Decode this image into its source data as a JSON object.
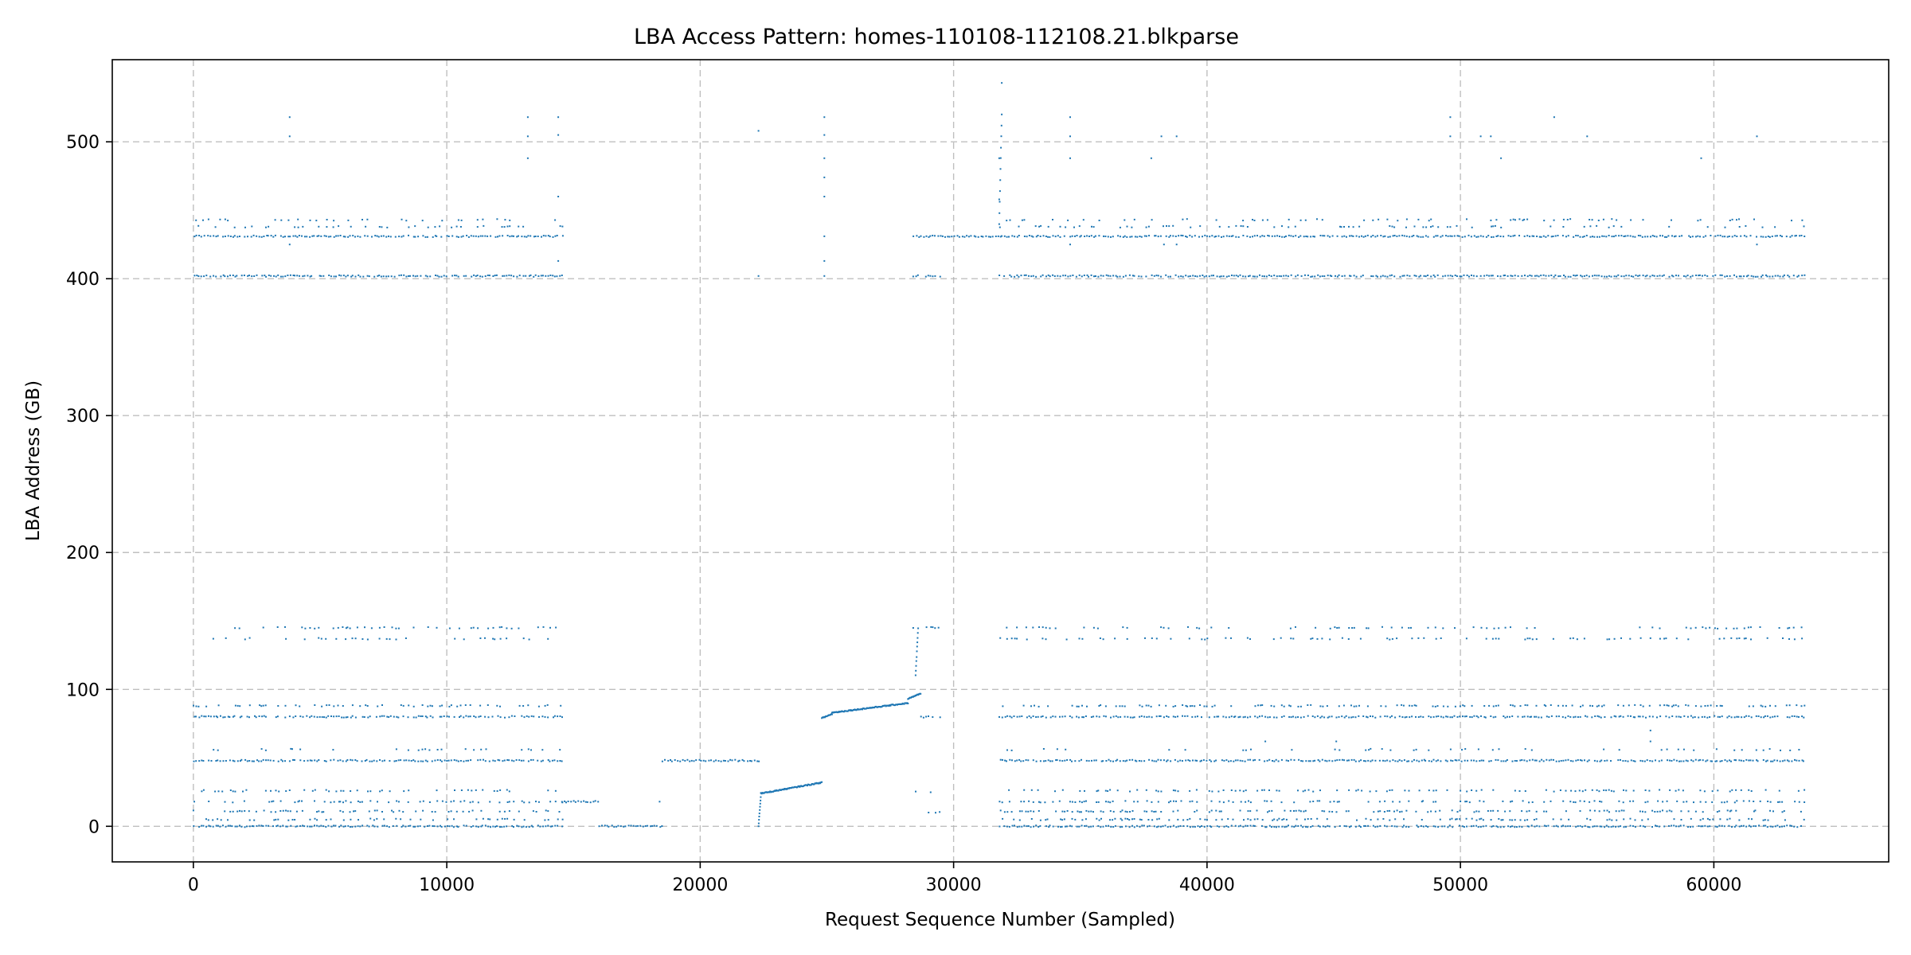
{
  "chart_data": {
    "type": "scatter",
    "title": "LBA Access Pattern: homes-110108-112108.21.blkparse",
    "xlabel": "Request Sequence Number (Sampled)",
    "ylabel": "LBA Address (GB)",
    "xlim": [
      -3200,
      66900
    ],
    "ylim": [
      -26,
      560
    ],
    "x_ticks": [
      0,
      10000,
      20000,
      30000,
      40000,
      50000,
      60000
    ],
    "y_ticks": [
      0,
      100,
      200,
      300,
      400,
      500
    ],
    "grid": true,
    "point_color": "#1f77b4",
    "series": [
      {
        "bands": [
          {
            "x": [
              0,
              14600
            ],
            "y": 0,
            "density": 0.9
          },
          {
            "x": [
              0,
              14600
            ],
            "y": 5,
            "density": 0.35
          },
          {
            "x": [
              0,
              14600
            ],
            "y": 11,
            "density": 0.35
          },
          {
            "x": [
              0,
              14600
            ],
            "y": 18,
            "density": 0.4
          },
          {
            "x": [
              0,
              14600
            ],
            "y": 26,
            "density": 0.35
          },
          {
            "x": [
              0,
              14600
            ],
            "y": 48,
            "density": 0.9
          },
          {
            "x": [
              0,
              14600
            ],
            "y": 56,
            "density": 0.12
          },
          {
            "x": [
              0,
              14600
            ],
            "y": 80,
            "density": 0.8
          },
          {
            "x": [
              0,
              14600
            ],
            "y": 88,
            "density": 0.4
          },
          {
            "x": [
              0,
              14600
            ],
            "y": 137,
            "density": 0.2
          },
          {
            "x": [
              0,
              14600
            ],
            "y": 145,
            "density": 0.25
          },
          {
            "x": [
              0,
              14600
            ],
            "y": 402,
            "density": 0.9
          },
          {
            "x": [
              0,
              14600
            ],
            "y": 431,
            "density": 0.9
          },
          {
            "x": [
              0,
              14600
            ],
            "y": 438,
            "density": 0.2
          },
          {
            "x": [
              0,
              14600
            ],
            "y": 443,
            "density": 0.2
          },
          {
            "x": [
              14500,
              16000
            ],
            "y": 18,
            "density": 1.0
          },
          {
            "x": [
              16000,
              18500
            ],
            "y": 0,
            "density": 1.0
          },
          {
            "x": [
              18500,
              22300
            ],
            "y": 48,
            "density": 1.0
          },
          {
            "x": [
              28400,
              29500
            ],
            "y": 145,
            "density": 0.5
          },
          {
            "x": [
              28400,
              29500
            ],
            "y": 402,
            "density": 0.7
          },
          {
            "x": [
              28400,
              29500
            ],
            "y": 80,
            "density": 0.4
          },
          {
            "x": [
              28400,
              29500
            ],
            "y": 25,
            "density": 0.4
          },
          {
            "x": [
              28400,
              29500
            ],
            "y": 10,
            "density": 0.4
          },
          {
            "x": [
              28400,
              31800
            ],
            "y": 431,
            "density": 1.0
          },
          {
            "x": [
              31800,
              63600
            ],
            "y": 0,
            "density": 0.9
          },
          {
            "x": [
              31800,
              63600
            ],
            "y": 5,
            "density": 0.35
          },
          {
            "x": [
              31800,
              63600
            ],
            "y": 11,
            "density": 0.35
          },
          {
            "x": [
              31800,
              63600
            ],
            "y": 18,
            "density": 0.4
          },
          {
            "x": [
              31800,
              63600
            ],
            "y": 26,
            "density": 0.35
          },
          {
            "x": [
              31800,
              63600
            ],
            "y": 48,
            "density": 0.9
          },
          {
            "x": [
              31800,
              63600
            ],
            "y": 56,
            "density": 0.12
          },
          {
            "x": [
              31800,
              63600
            ],
            "y": 80,
            "density": 0.8
          },
          {
            "x": [
              31800,
              63600
            ],
            "y": 88,
            "density": 0.4
          },
          {
            "x": [
              31800,
              63600
            ],
            "y": 137,
            "density": 0.2
          },
          {
            "x": [
              31800,
              63600
            ],
            "y": 145,
            "density": 0.25
          },
          {
            "x": [
              31800,
              63600
            ],
            "y": 402,
            "density": 0.9
          },
          {
            "x": [
              31800,
              63600
            ],
            "y": 431,
            "density": 0.9
          },
          {
            "x": [
              31800,
              63600
            ],
            "y": 438,
            "density": 0.2
          },
          {
            "x": [
              31800,
              63600
            ],
            "y": 443,
            "density": 0.2
          }
        ],
        "ramps": [
          {
            "x": [
              22300,
              22400
            ],
            "y": [
              0,
              24
            ]
          },
          {
            "x": [
              22400,
              24800
            ],
            "y": [
              24,
              32
            ]
          },
          {
            "x": [
              24800,
              25200
            ],
            "y": [
              79,
              82
            ]
          },
          {
            "x": [
              25200,
              28200
            ],
            "y": [
              83,
              90
            ]
          },
          {
            "x": [
              28200,
              28700
            ],
            "y": [
              93,
              97
            ]
          },
          {
            "x": [
              28500,
              28600
            ],
            "y": [
              110,
              145
            ]
          },
          {
            "x": [
              31800,
              31900
            ],
            "y": [
              440,
              520
            ]
          }
        ],
        "points": [
          [
            3800,
            518
          ],
          [
            3800,
            504
          ],
          [
            3800,
            425
          ],
          [
            13200,
            518
          ],
          [
            13200,
            504
          ],
          [
            13200,
            488
          ],
          [
            14400,
            518
          ],
          [
            14400,
            505
          ],
          [
            14400,
            460
          ],
          [
            14400,
            413
          ],
          [
            22300,
            508
          ],
          [
            22300,
            402
          ],
          [
            24900,
            518
          ],
          [
            24900,
            505
          ],
          [
            24900,
            488
          ],
          [
            24900,
            474
          ],
          [
            24900,
            460
          ],
          [
            24900,
            431
          ],
          [
            24900,
            413
          ],
          [
            24900,
            402
          ],
          [
            31900,
            543
          ],
          [
            31800,
            488
          ],
          [
            31800,
            458
          ],
          [
            34600,
            518
          ],
          [
            34600,
            504
          ],
          [
            34600,
            488
          ],
          [
            34600,
            425
          ],
          [
            37800,
            488
          ],
          [
            38200,
            504
          ],
          [
            38300,
            425
          ],
          [
            38800,
            504
          ],
          [
            38800,
            425
          ],
          [
            49600,
            518
          ],
          [
            49600,
            504
          ],
          [
            50800,
            504
          ],
          [
            51200,
            504
          ],
          [
            51600,
            488
          ],
          [
            53700,
            518
          ],
          [
            55000,
            504
          ],
          [
            59500,
            488
          ],
          [
            61700,
            504
          ],
          [
            61700,
            425
          ],
          [
            42300,
            62
          ],
          [
            45100,
            62
          ],
          [
            57500,
            70
          ],
          [
            57500,
            62
          ],
          [
            18400,
            18
          ]
        ]
      }
    ]
  }
}
